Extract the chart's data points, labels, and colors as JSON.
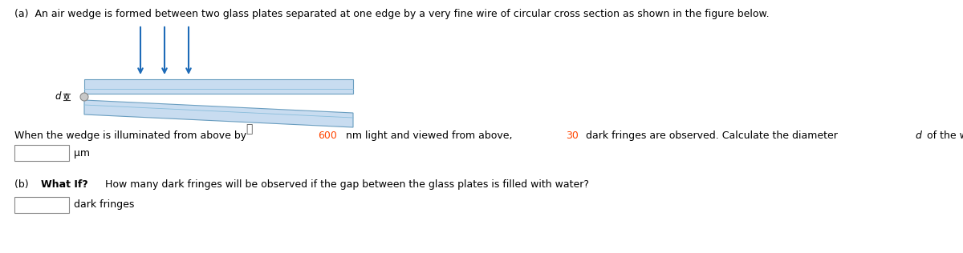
{
  "title_a": "(a)  An air wedge is formed between two glass plates separated at one edge by a very fine wire of circular cross section as shown in the figure below.",
  "text_parts_1": [
    {
      "text": "When the wedge is illuminated from above by ",
      "color": "#000000",
      "italic": false,
      "bold": false
    },
    {
      "text": "600",
      "color": "#FF4500",
      "italic": false,
      "bold": false
    },
    {
      "text": " nm light and viewed from above, ",
      "color": "#000000",
      "italic": false,
      "bold": false
    },
    {
      "text": "30",
      "color": "#FF4500",
      "italic": false,
      "bold": false
    },
    {
      "text": " dark fringes are observed. Calculate the diameter ",
      "color": "#000000",
      "italic": false,
      "bold": false
    },
    {
      "text": "d",
      "color": "#000000",
      "italic": true,
      "bold": false
    },
    {
      "text": " of the wire (in μm).",
      "color": "#000000",
      "italic": false,
      "bold": false
    }
  ],
  "label_um": "μm",
  "text_b_parts": [
    {
      "text": "(b)  ",
      "color": "#000000",
      "italic": false,
      "bold": false
    },
    {
      "text": "What If?",
      "color": "#000000",
      "italic": false,
      "bold": true
    },
    {
      "text": " How many dark fringes will be observed if the gap between the glass plates is filled with water?",
      "color": "#000000",
      "italic": false,
      "bold": false
    }
  ],
  "label_dark": "dark fringes",
  "color_highlight": "#FF4500",
  "color_arrow": "#1E6BB8",
  "color_glass": "#C8DCF0",
  "color_glass_edge": "#6A9EC0",
  "color_glass_line": "#8ABEDC",
  "color_wire": "#B0B0B0",
  "color_bracket": "#333333",
  "bg_color": "#FFFFFF",
  "text_color": "#000000",
  "box_color": "#FFFFFF",
  "box_edge": "#888888",
  "base_fontsize": 9.0
}
